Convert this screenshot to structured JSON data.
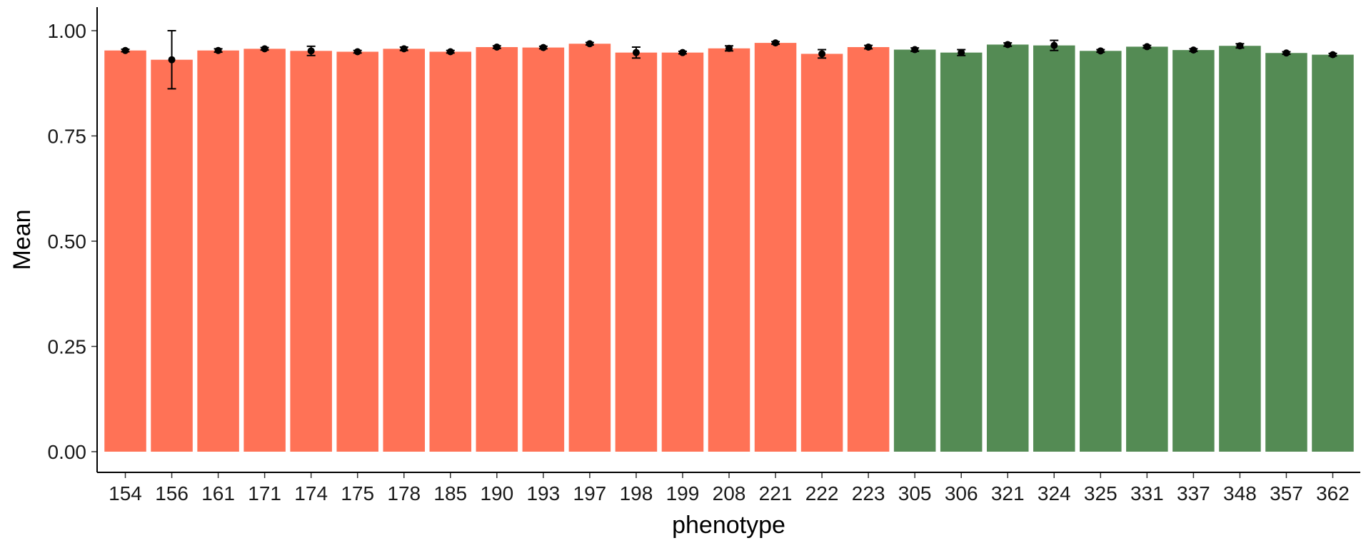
{
  "chart_data": {
    "type": "bar",
    "xlabel": "phenotype",
    "ylabel": "Mean",
    "ylim": [
      0,
      1.05
    ],
    "y_ticks": [
      "0.00",
      "0.25",
      "0.50",
      "0.75",
      "1.00"
    ],
    "y_tick_values": [
      0,
      0.25,
      0.5,
      0.75,
      1.0
    ],
    "grid": false,
    "legend": "none",
    "colors": {
      "group_1": "#FF7256",
      "group_2": "#548B54"
    },
    "categories": [
      "154",
      "156",
      "161",
      "171",
      "174",
      "175",
      "178",
      "185",
      "190",
      "193",
      "197",
      "198",
      "199",
      "208",
      "221",
      "222",
      "223",
      "305",
      "306",
      "321",
      "324",
      "325",
      "331",
      "337",
      "348",
      "357",
      "362"
    ],
    "values": [
      0.953,
      0.931,
      0.953,
      0.957,
      0.952,
      0.95,
      0.957,
      0.95,
      0.961,
      0.96,
      0.969,
      0.948,
      0.948,
      0.958,
      0.971,
      0.945,
      0.961,
      0.955,
      0.948,
      0.967,
      0.965,
      0.952,
      0.962,
      0.954,
      0.964,
      0.947,
      0.943
    ],
    "error_low": [
      0.95,
      0.862,
      0.949,
      0.954,
      0.941,
      0.947,
      0.953,
      0.947,
      0.958,
      0.957,
      0.966,
      0.935,
      0.945,
      0.952,
      0.968,
      0.935,
      0.957,
      0.951,
      0.941,
      0.963,
      0.953,
      0.949,
      0.959,
      0.951,
      0.959,
      0.944,
      0.94
    ],
    "error_high": [
      0.956,
      1.0,
      0.957,
      0.96,
      0.963,
      0.953,
      0.961,
      0.953,
      0.964,
      0.963,
      0.972,
      0.961,
      0.951,
      0.964,
      0.974,
      0.955,
      0.965,
      0.959,
      0.955,
      0.971,
      0.977,
      0.955,
      0.965,
      0.957,
      0.969,
      0.95,
      0.946
    ],
    "groups": [
      1,
      1,
      1,
      1,
      1,
      1,
      1,
      1,
      1,
      1,
      1,
      1,
      1,
      1,
      1,
      1,
      1,
      2,
      2,
      2,
      2,
      2,
      2,
      2,
      2,
      2,
      2
    ]
  }
}
